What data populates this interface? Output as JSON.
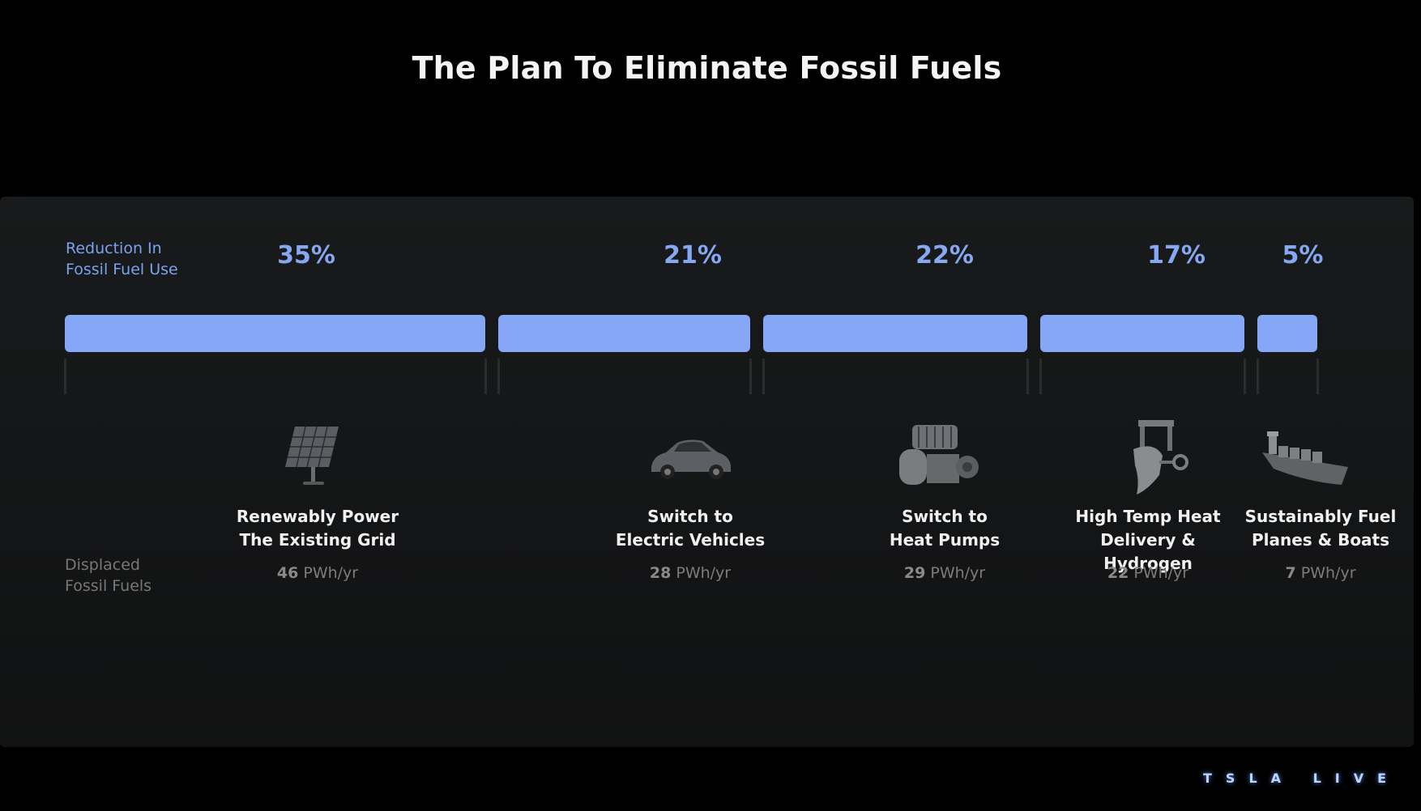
{
  "title": "The Plan To Eliminate Fossil Fuels",
  "logo_text": "TSLA LIVE",
  "chart_data": {
    "type": "bar",
    "orientation": "horizontal-stacked",
    "title": "The Plan To Eliminate Fossil Fuels",
    "row_labels": {
      "reduction": [
        "Reduction In",
        "Fossil Fuel Use"
      ],
      "displaced": [
        "Displaced",
        "Fossil Fuels"
      ]
    },
    "bar_color": "#85a7f6",
    "categories": [
      {
        "name_lines": [
          "Renewably Power",
          "The Existing Grid"
        ],
        "percent": 35,
        "percent_label": "35%",
        "value": 46,
        "unit": "PWh/yr",
        "icon": "solar-panel-icon"
      },
      {
        "name_lines": [
          "Switch to",
          "Electric Vehicles"
        ],
        "percent": 21,
        "percent_label": "21%",
        "value": 28,
        "unit": "PWh/yr",
        "icon": "electric-car-icon"
      },
      {
        "name_lines": [
          "Switch to",
          "Heat Pumps"
        ],
        "percent": 22,
        "percent_label": "22%",
        "value": 29,
        "unit": "PWh/yr",
        "icon": "heat-pump-icon"
      },
      {
        "name_lines": [
          "High Temp Heat",
          "Delivery & Hydrogen"
        ],
        "percent": 17,
        "percent_label": "17%",
        "value": 22,
        "unit": "PWh/yr",
        "icon": "industrial-furnace-icon"
      },
      {
        "name_lines": [
          "Sustainably Fuel",
          "Planes & Boats"
        ],
        "percent": 5,
        "percent_label": "5%",
        "value": 7,
        "unit": "PWh/yr",
        "icon": "cargo-ship-icon"
      }
    ]
  }
}
